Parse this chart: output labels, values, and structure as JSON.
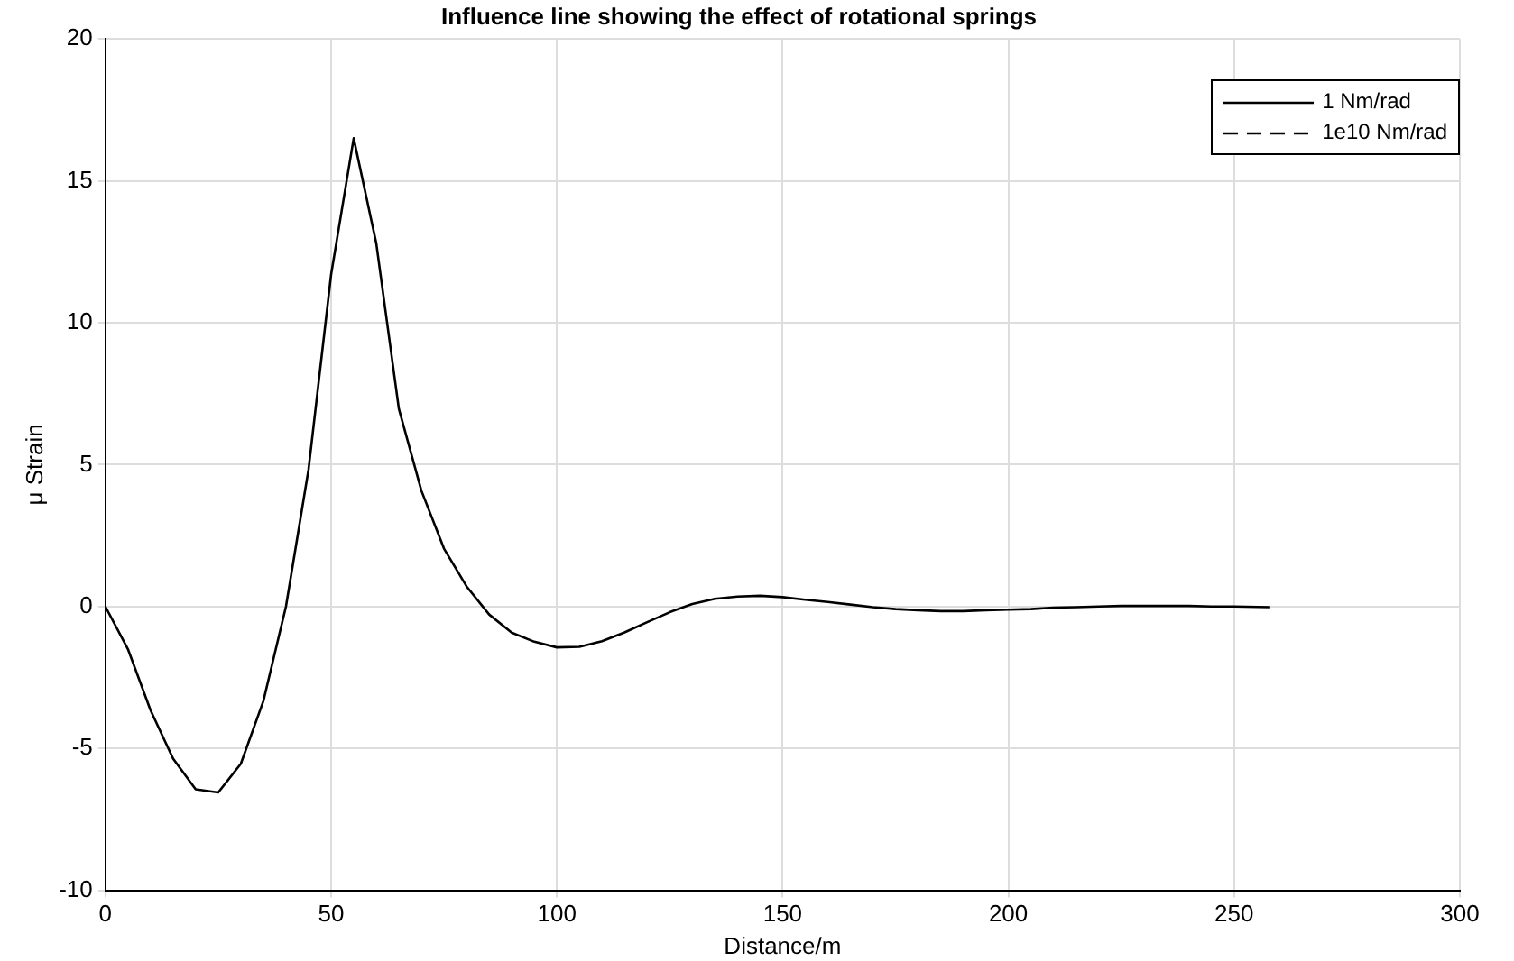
{
  "chart_data": {
    "type": "line",
    "title": "Influence line showing the effect of rotational springs",
    "xlabel": "Distance/m",
    "ylabel": "μ Strain",
    "x": [
      0,
      5,
      10,
      15,
      20,
      25,
      30,
      35,
      40,
      45,
      50,
      55,
      60,
      65,
      70,
      75,
      80,
      85,
      90,
      95,
      100,
      105,
      110,
      115,
      120,
      125,
      130,
      135,
      140,
      145,
      150,
      155,
      160,
      165,
      170,
      175,
      180,
      185,
      190,
      195,
      200,
      205,
      210,
      215,
      220,
      225,
      230,
      235,
      240,
      245,
      250,
      258
    ],
    "series": [
      {
        "name": "1 Nm/rad",
        "color": "#000000",
        "line_style": "solid",
        "values": [
          0,
          -1.5,
          -3.65,
          -5.36,
          -6.44,
          -6.55,
          -5.54,
          -3.33,
          0,
          4.83,
          11.7,
          16.5,
          12.8,
          6.97,
          4.08,
          2.04,
          0.71,
          -0.28,
          -0.92,
          -1.24,
          -1.44,
          -1.42,
          -1.22,
          -0.91,
          -0.55,
          -0.2,
          0.09,
          0.27,
          0.35,
          0.38,
          0.33,
          0.24,
          0.16,
          0.07,
          -0.02,
          -0.09,
          -0.13,
          -0.16,
          -0.16,
          -0.13,
          -0.11,
          -0.09,
          -0.04,
          -0.02,
          0,
          0.02,
          0.02,
          0.02,
          0.02,
          0,
          0,
          -0.02
        ]
      },
      {
        "name": "1e10 Nm/rad",
        "color": "#000000",
        "line_style": "dashed",
        "values": [
          null,
          null,
          null,
          null,
          null,
          null,
          null,
          null,
          null,
          null,
          null,
          null,
          null,
          null,
          null,
          null,
          null,
          null,
          null,
          null,
          null,
          null,
          null,
          null,
          null,
          null,
          null,
          null,
          null,
          null,
          null,
          null,
          null,
          null,
          null,
          null,
          null,
          null,
          null,
          null,
          null,
          null,
          null,
          null,
          null,
          null,
          null,
          null,
          null,
          null,
          null,
          null
        ]
      }
    ],
    "xlim": [
      0,
      300
    ],
    "xticks": [
      0,
      50,
      100,
      150,
      200,
      250,
      300
    ],
    "ylim": [
      -10,
      20
    ],
    "yticks": [
      -10,
      -5,
      0,
      5,
      10,
      15,
      20
    ],
    "grid": true,
    "legend": "top right",
    "marker": "none"
  }
}
